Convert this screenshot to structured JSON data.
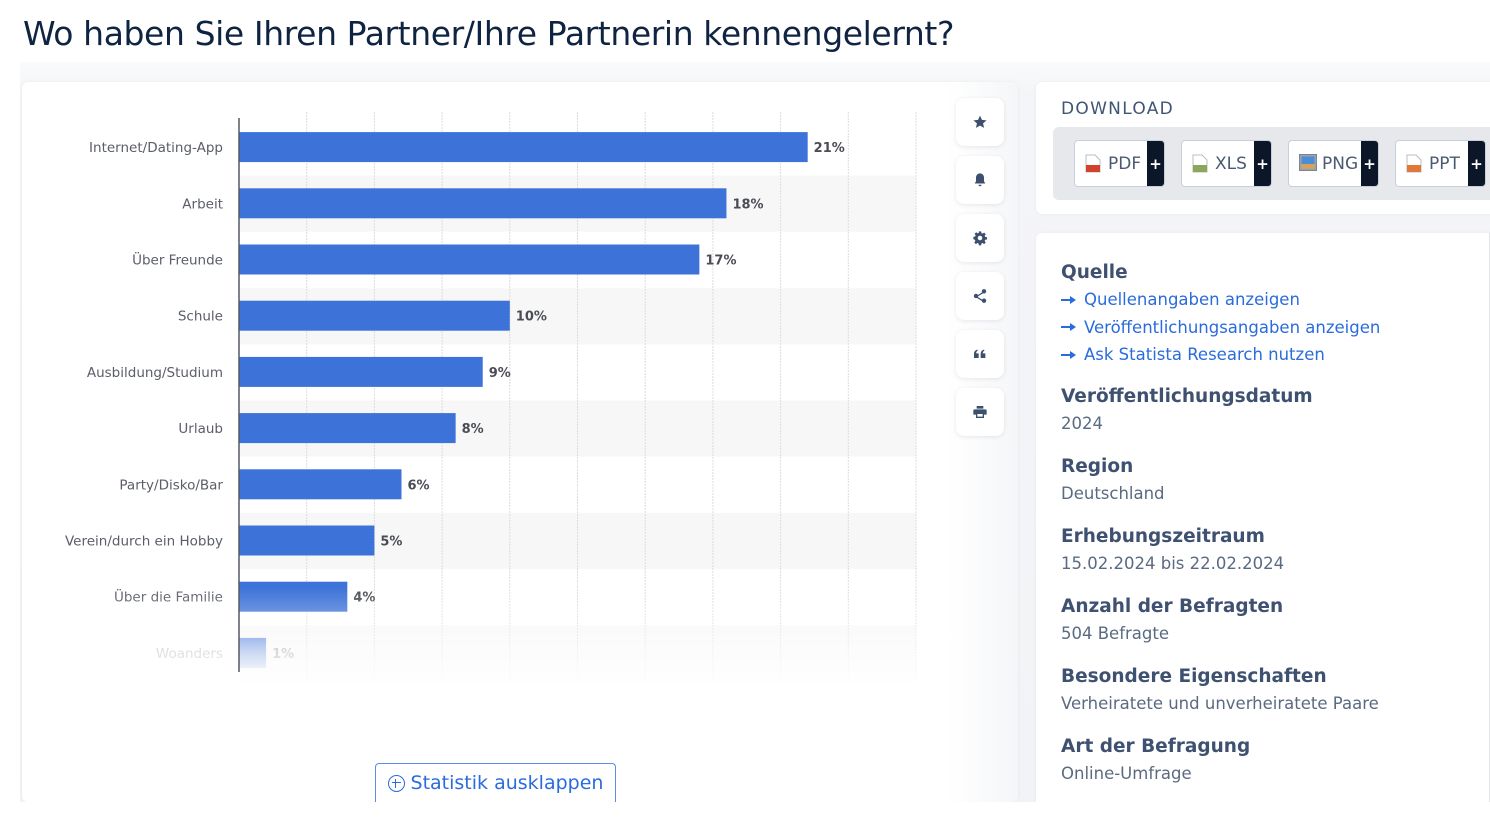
{
  "page": {
    "title": "Wo haben Sie Ihren Partner/Ihre Partnerin kennengelernt?"
  },
  "chart_data": {
    "type": "bar",
    "orientation": "horizontal",
    "title": "Wo haben Sie Ihren Partner/Ihre Partnerin kennengelernt?",
    "xlabel": "",
    "ylabel": "",
    "categories": [
      "Internet/Dating-App",
      "Arbeit",
      "Über Freunde",
      "Schule",
      "Ausbildung/Studium",
      "Urlaub",
      "Party/Disko/Bar",
      "Verein/durch ein Hobby",
      "Über die Familie",
      "Woanders"
    ],
    "values": [
      21,
      18,
      17,
      10,
      9,
      8,
      6,
      5,
      4,
      1
    ],
    "value_labels": [
      "21%",
      "18%",
      "17%",
      "10%",
      "9%",
      "8%",
      "6%",
      "5%",
      "4%",
      "1%"
    ],
    "unit": "%",
    "xlim": [
      0,
      25
    ],
    "grid_step": 2.5,
    "grid": true,
    "alternating_row_bands": true,
    "legend": "none",
    "bar_color": "#3d72d8",
    "faded_last_row": true
  },
  "toolbar": {
    "buttons": [
      {
        "name": "favorite-button",
        "icon": "star-icon"
      },
      {
        "name": "notification-button",
        "icon": "bell-icon"
      },
      {
        "name": "settings-button",
        "icon": "gear-icon"
      },
      {
        "name": "share-button",
        "icon": "share-icon"
      },
      {
        "name": "cite-button",
        "icon": "quote-icon"
      },
      {
        "name": "print-button",
        "icon": "printer-icon"
      }
    ]
  },
  "expand_button": {
    "label": "Statistik ausklappen",
    "icon": "plus-circle-icon"
  },
  "download": {
    "title": "DOWNLOAD",
    "formats": [
      {
        "label": "PDF",
        "icon": "pdf-file-icon",
        "color": "#d0432b"
      },
      {
        "label": "XLS",
        "icon": "xls-file-icon",
        "color": "#8aa85a"
      },
      {
        "label": "PNG",
        "icon": "png-image-icon",
        "color": "#4a8ed8"
      },
      {
        "label": "PPT",
        "icon": "ppt-file-icon",
        "color": "#e0783a"
      }
    ],
    "plus_label": "+"
  },
  "info": {
    "source": {
      "heading": "Quelle",
      "links": [
        "Quellenangaben anzeigen",
        "Veröffentlichungsangaben anzeigen",
        "Ask Statista Research nutzen"
      ]
    },
    "fields": [
      {
        "heading": "Veröffentlichungsdatum",
        "value": "2024"
      },
      {
        "heading": "Region",
        "value": "Deutschland"
      },
      {
        "heading": "Erhebungszeitraum",
        "value": "15.02.2024 bis 22.02.2024"
      },
      {
        "heading": "Anzahl der Befragten",
        "value": "504 Befragte"
      },
      {
        "heading": "Besondere Eigenschaften",
        "value": "Verheiratete und unverheiratete Paare"
      },
      {
        "heading": "Art der Befragung",
        "value": "Online-Umfrage"
      }
    ]
  },
  "colors": {
    "accent": "#2a6bde",
    "bar": "#3d72d8",
    "heading": "#0f2442",
    "toolbar_icon": "#3c4f6e"
  }
}
